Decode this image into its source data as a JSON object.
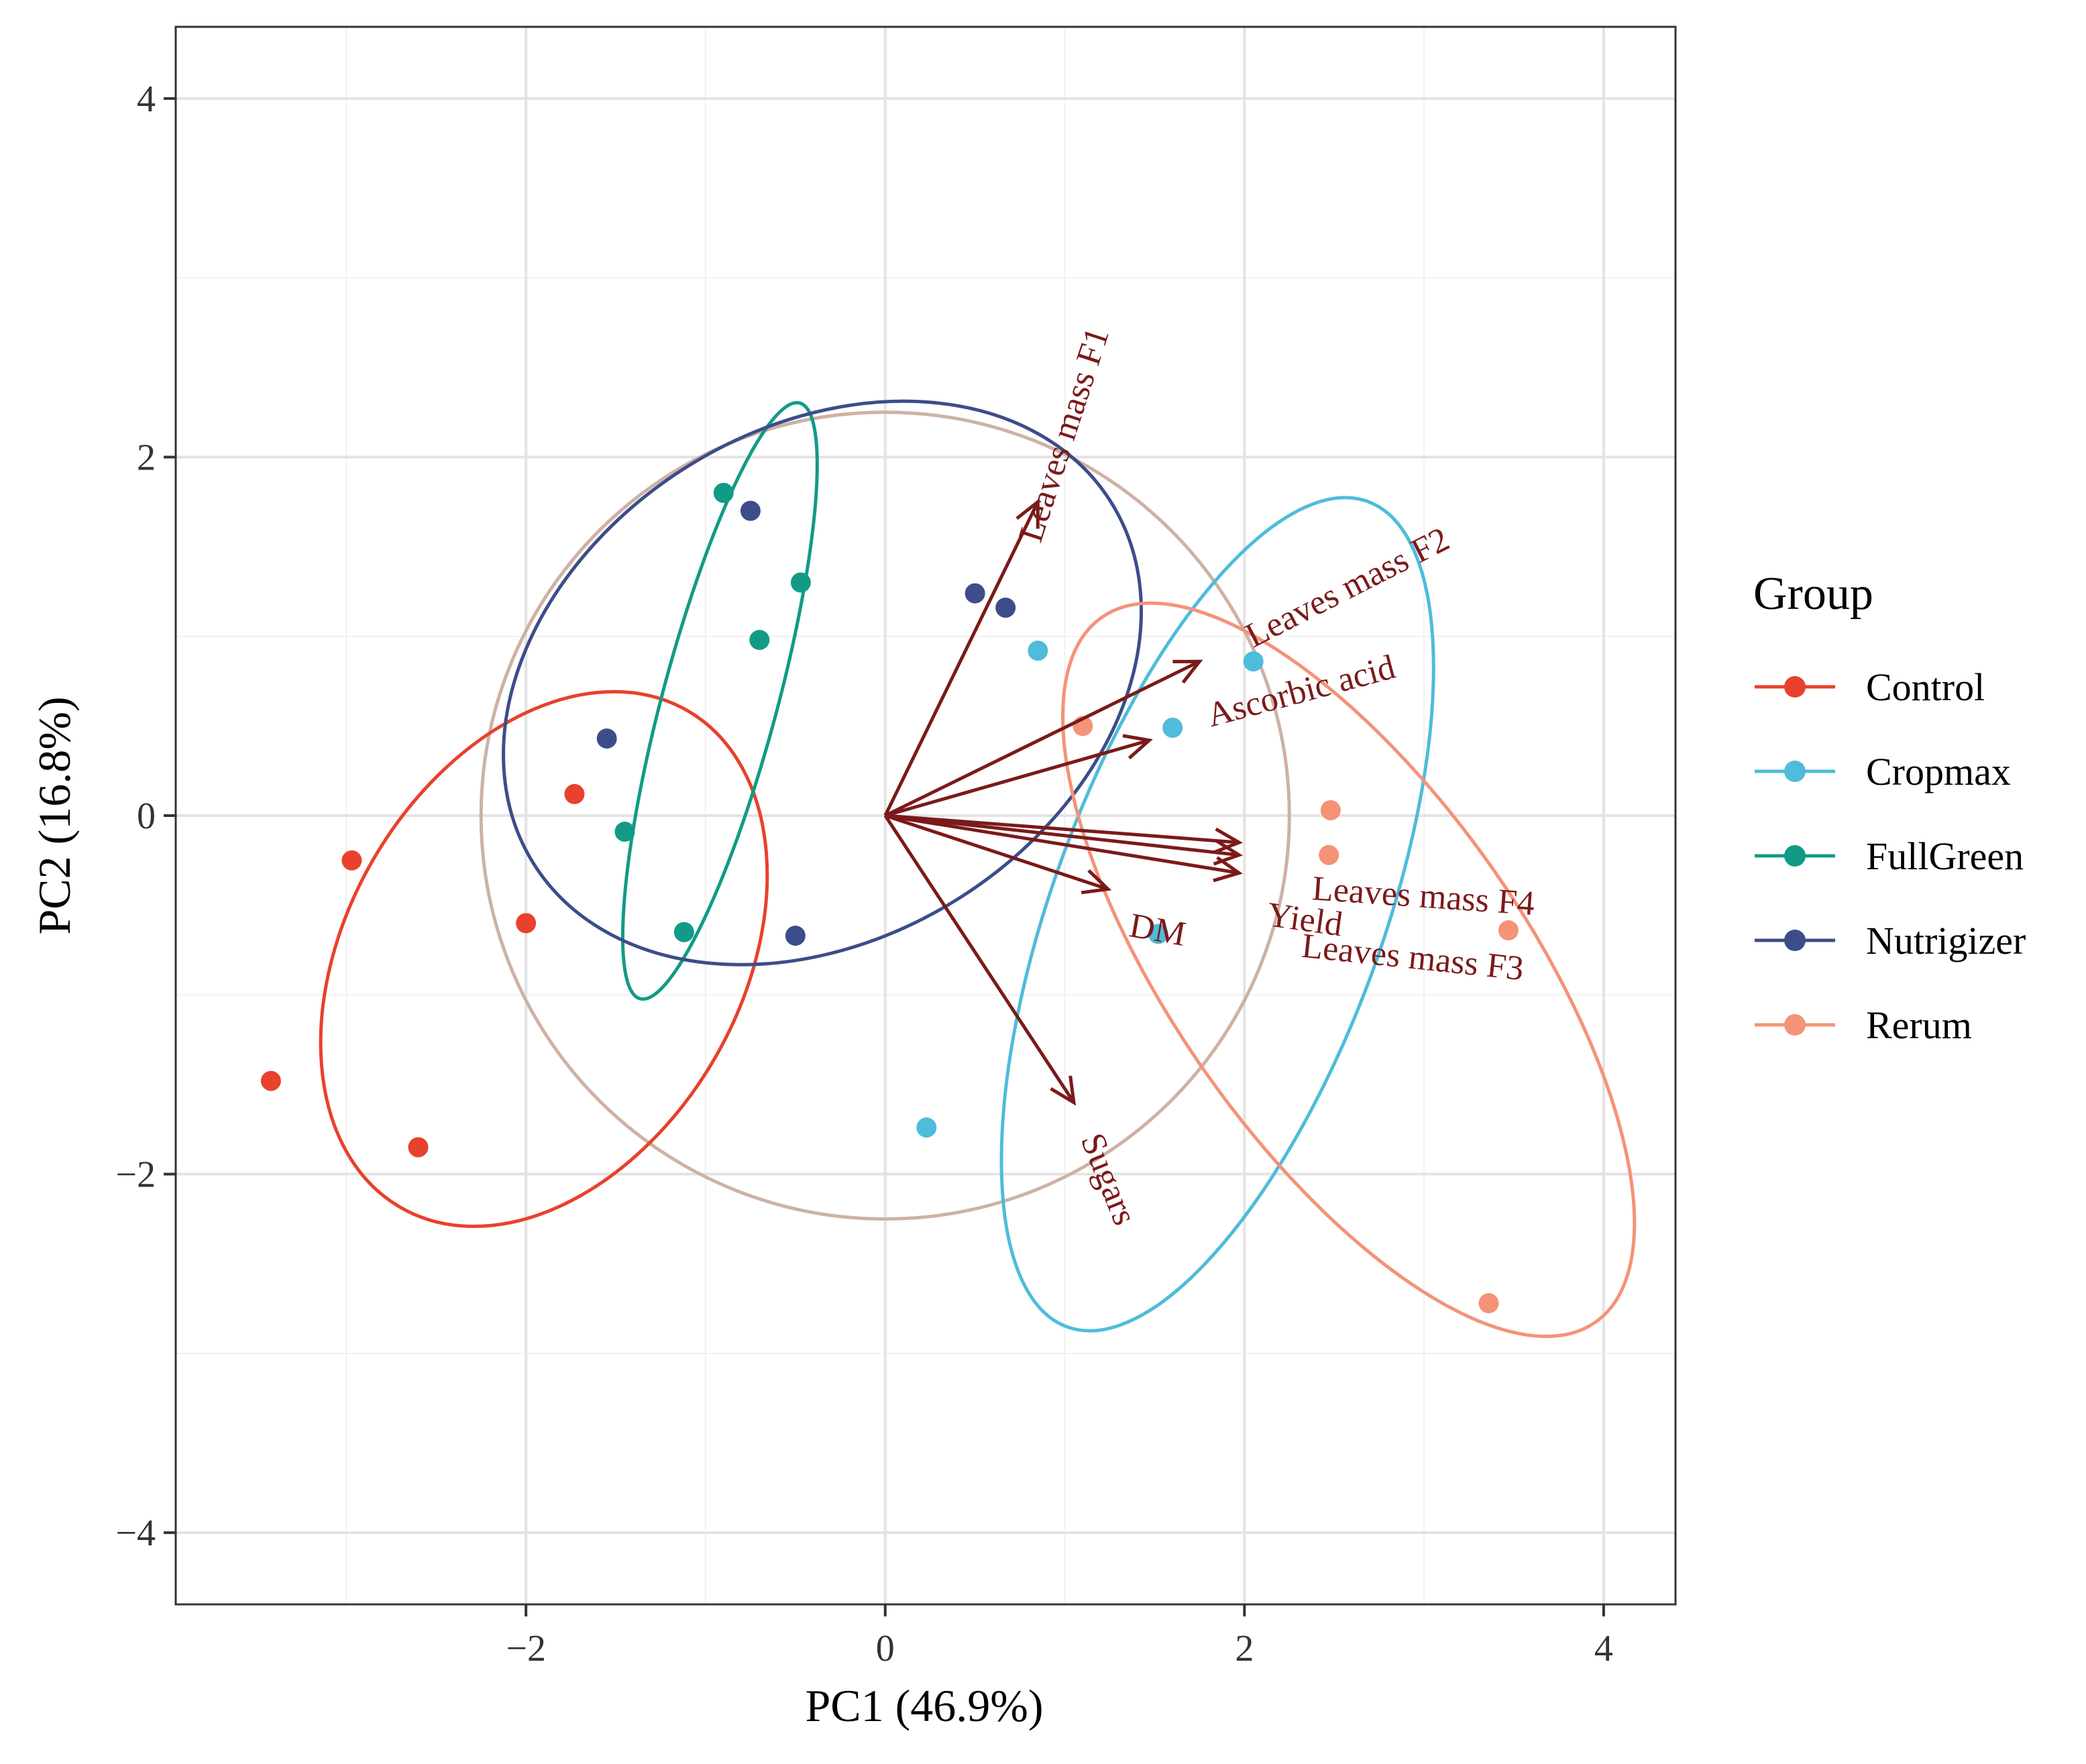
{
  "chart_data": {
    "type": "scatter",
    "subtype": "pca-biplot",
    "title": "",
    "xlabel": "PC1 (46.9%)",
    "ylabel": "PC2 (16.8%)",
    "xlim": [
      -3.95,
      4.4
    ],
    "ylim": [
      -4.4,
      4.4
    ],
    "x_ticks": [
      -2,
      0,
      2,
      4
    ],
    "y_ticks": [
      -4,
      -2,
      0,
      2,
      4
    ],
    "x_tick_labels": [
      "−2",
      "0",
      "2",
      "4"
    ],
    "y_tick_labels": [
      "−4",
      "−2",
      "0",
      "2",
      "4"
    ],
    "grid": true,
    "legend": {
      "title": "Group",
      "position": "right",
      "entries": [
        "Control",
        "Cropmax",
        "FullGreen",
        "Nutrigizer",
        "Rerum"
      ]
    },
    "series": [
      {
        "name": "Control",
        "color": "#E8412C",
        "points": [
          [
            -1.73,
            0.12
          ],
          [
            -2.97,
            -0.25
          ],
          [
            -2.0,
            -0.6
          ],
          [
            -3.42,
            -1.48
          ],
          [
            -2.6,
            -1.85
          ]
        ],
        "ellipse": {
          "cx": -1.9,
          "cy": -0.8,
          "rx": 1.1,
          "ry": 1.6,
          "angle": 30
        }
      },
      {
        "name": "Cropmax",
        "color": "#4EBCDA",
        "points": [
          [
            0.85,
            0.92
          ],
          [
            2.05,
            0.86
          ],
          [
            1.6,
            0.49
          ],
          [
            1.52,
            -0.66
          ],
          [
            0.23,
            -1.74
          ]
        ],
        "ellipse": {
          "cx": 1.85,
          "cy": -0.55,
          "rx": 0.92,
          "ry": 2.45,
          "angle": 20
        }
      },
      {
        "name": "FullGreen",
        "color": "#119B86",
        "points": [
          [
            -0.9,
            1.8
          ],
          [
            -0.47,
            1.3
          ],
          [
            -0.7,
            0.98
          ],
          [
            -1.45,
            -0.09
          ],
          [
            -1.12,
            -0.65
          ]
        ],
        "ellipse": {
          "cx": -0.92,
          "cy": 0.64,
          "rx": 0.32,
          "ry": 1.72,
          "angle": 15
        }
      },
      {
        "name": "Nutrigizer",
        "color": "#3C4D8A",
        "points": [
          [
            -0.75,
            1.7
          ],
          [
            0.5,
            1.24
          ],
          [
            0.67,
            1.16
          ],
          [
            -1.55,
            0.43
          ],
          [
            -0.5,
            -0.67
          ]
        ],
        "ellipse": {
          "cx": -0.35,
          "cy": 0.74,
          "rx": 1.42,
          "ry": 1.9,
          "angle": 58
        }
      },
      {
        "name": "Rerum",
        "color": "#F49377",
        "points": [
          [
            1.1,
            0.5
          ],
          [
            2.48,
            0.03
          ],
          [
            2.47,
            -0.22
          ],
          [
            3.47,
            -0.64
          ],
          [
            3.36,
            -2.72
          ]
        ],
        "ellipse": {
          "cx": 2.58,
          "cy": -0.86,
          "rx": 0.98,
          "ry": 2.4,
          "angle": -35
        }
      }
    ],
    "correlation_circle": {
      "color": "#CDB2A4",
      "center": [
        0,
        0
      ],
      "radius": 2.25
    },
    "loadings": {
      "color": "#7B1A1A",
      "vectors": [
        {
          "name": "Leaves mass F1",
          "x": 0.85,
          "y": 1.75
        },
        {
          "name": "Leaves mass F2",
          "x": 1.75,
          "y": 0.86
        },
        {
          "name": "Ascorbic acid",
          "x": 1.47,
          "y": 0.42
        },
        {
          "name": "Leaves mass F4",
          "x": 1.97,
          "y": -0.15
        },
        {
          "name": "Leaves mass F3",
          "x": 1.97,
          "y": -0.32
        },
        {
          "name": "Yield",
          "x": 1.97,
          "y": -0.22
        },
        {
          "name": "DM",
          "x": 1.24,
          "y": -0.41
        },
        {
          "name": "Sugars",
          "x": 1.05,
          "y": -1.6
        }
      ]
    }
  }
}
